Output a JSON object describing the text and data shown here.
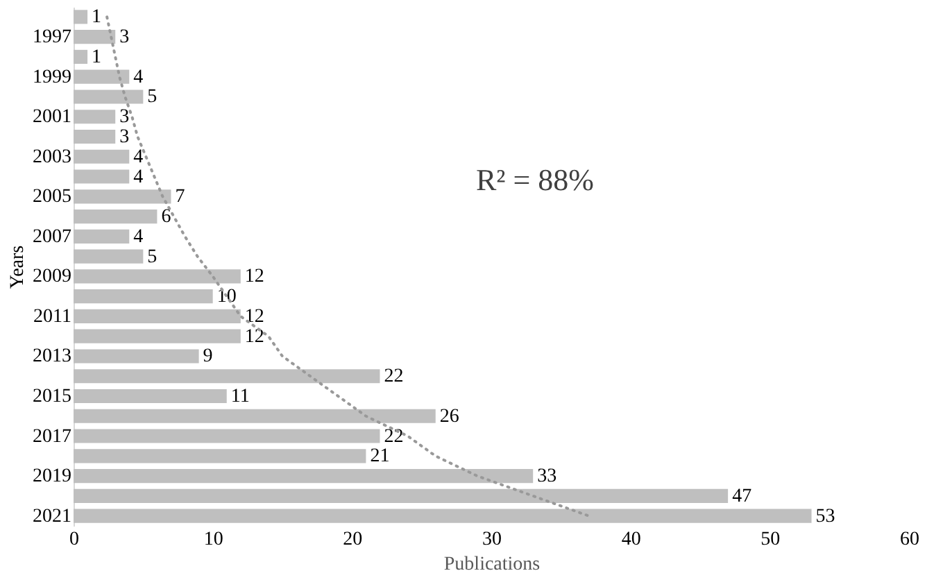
{
  "chart_data": {
    "type": "bar",
    "orientation": "horizontal",
    "xlabel": "Publications",
    "ylabel": "Years",
    "categories": [
      null,
      "1997",
      null,
      "1999",
      null,
      "2001",
      null,
      "2003",
      null,
      "2005",
      null,
      "2007",
      null,
      "2009",
      null,
      "2011",
      null,
      "2013",
      null,
      "2015",
      null,
      "2017",
      null,
      "2019",
      null,
      "2021"
    ],
    "series": [
      {
        "color": "#bfbfbf",
        "data_labels": true,
        "values": [
          1,
          3,
          1,
          4,
          5,
          3,
          3,
          4,
          4,
          7,
          6,
          4,
          5,
          12,
          10,
          12,
          12,
          9,
          22,
          11,
          26,
          22,
          21,
          33,
          47,
          53
        ]
      },
      {
        "type": "line",
        "color": "#999999",
        "line_style": "dotted",
        "values": [
          2.4,
          2.7,
          3.0,
          3.3,
          3.7,
          4.2,
          4.6,
          5.2,
          5.8,
          6.4,
          7.2,
          8.0,
          8.9,
          10,
          11,
          12,
          14,
          15,
          17,
          19,
          21,
          24,
          26,
          29,
          33,
          37
        ]
      }
    ],
    "xlim": [
      0,
      60
    ],
    "xticks": [
      0,
      10,
      20,
      30,
      40,
      50,
      60
    ],
    "grid": false,
    "annotations": [
      "R² = 88%"
    ]
  }
}
